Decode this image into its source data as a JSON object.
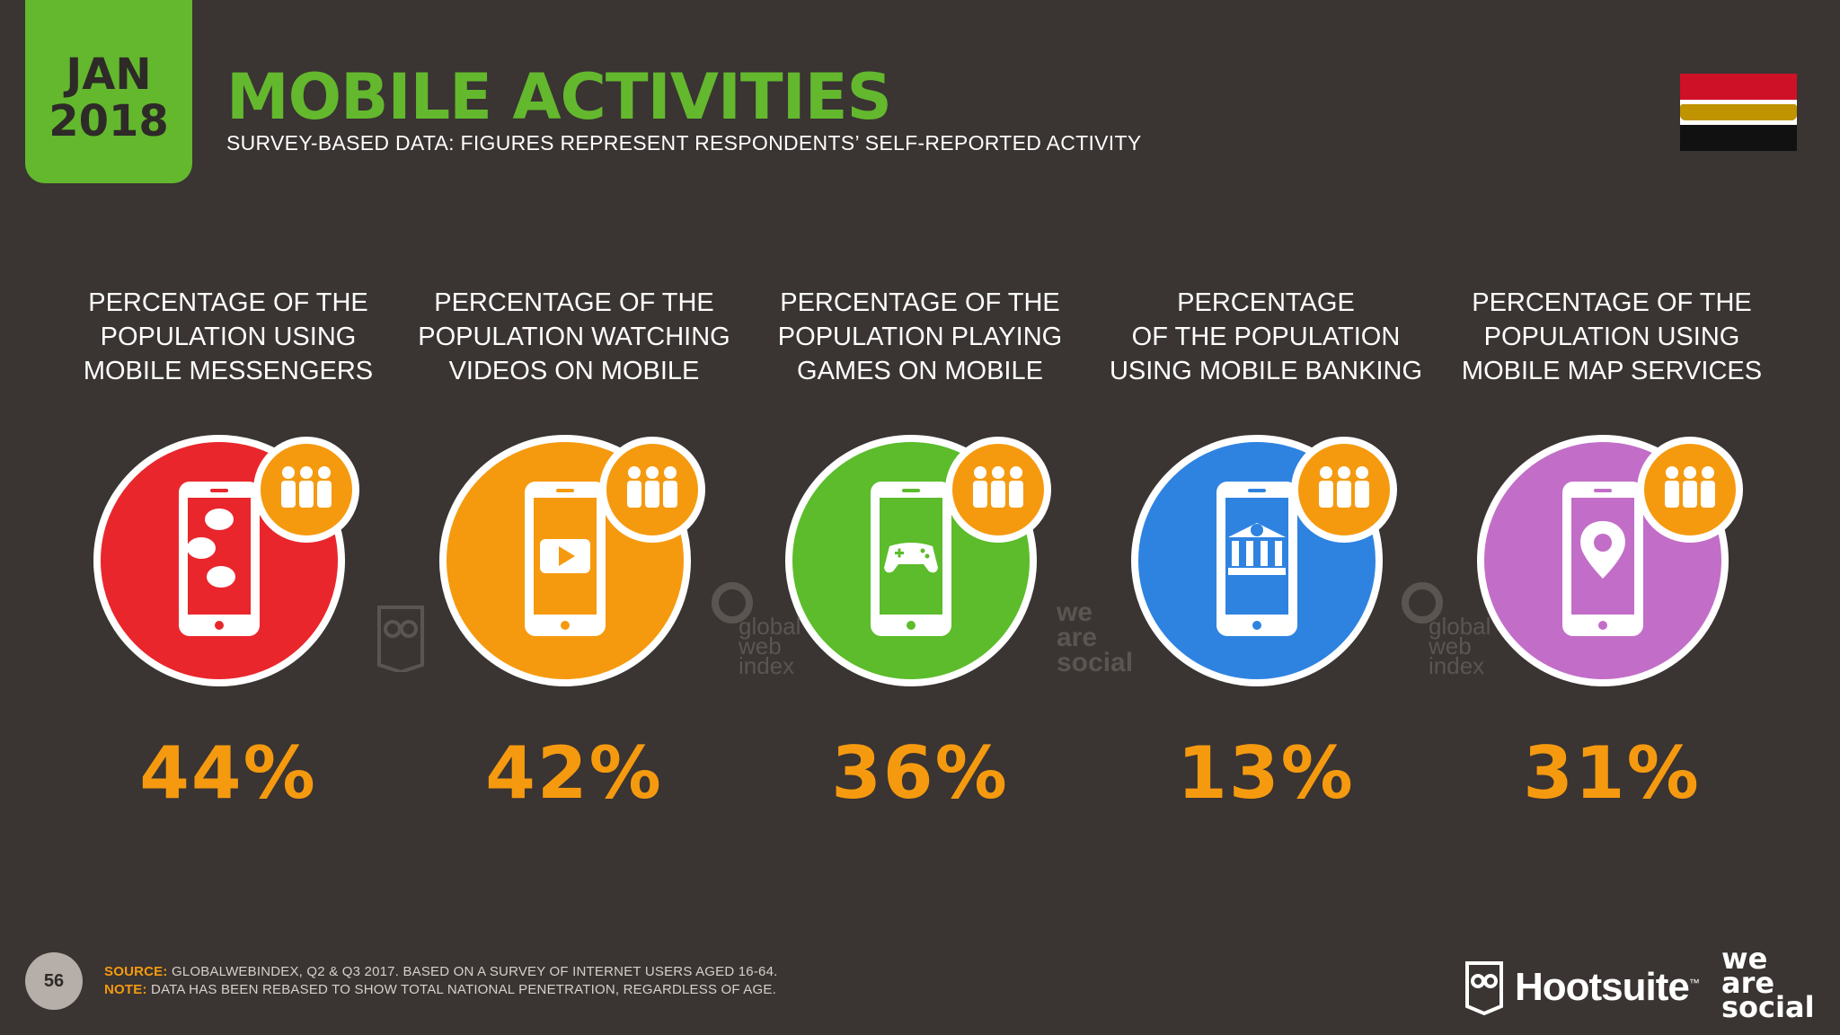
{
  "header": {
    "month": "JAN",
    "year": "2018",
    "title": "MOBILE ACTIVITIES",
    "subtitle": "SURVEY-BASED DATA: FIGURES REPRESENT RESPONDENTS’ SELF-REPORTED ACTIVITY",
    "flag_icon": "egypt-flag-icon"
  },
  "stats": [
    {
      "label": "PERCENTAGE OF THE\nPOPULATION USING\nMOBILE MESSENGERS",
      "value": "44%",
      "color": "#e9262c",
      "icon": "chat-bubbles-icon"
    },
    {
      "label": "PERCENTAGE OF THE\nPOPULATION WATCHING\nVIDEOS ON MOBILE",
      "value": "42%",
      "color": "#f59a0f",
      "icon": "video-play-icon"
    },
    {
      "label": "PERCENTAGE OF THE\nPOPULATION PLAYING\nGAMES ON MOBILE",
      "value": "36%",
      "color": "#5cbc2b",
      "icon": "game-controller-icon"
    },
    {
      "label": "PERCENTAGE\nOF THE POPULATION\nUSING MOBILE BANKING",
      "value": "13%",
      "color": "#2f83e0",
      "icon": "bank-icon"
    },
    {
      "label": "PERCENTAGE OF THE\nPOPULATION USING\nMOBILE MAP SERVICES",
      "value": "31%",
      "color": "#c26ec8",
      "icon": "map-pin-icon"
    }
  ],
  "watermarks": {
    "gwi": "global\nweb\nindex",
    "was": "we\nare\nsocial"
  },
  "footer": {
    "page_number": "56",
    "source_label": "SOURCE:",
    "source_text": "GLOBALWEBINDEX, Q2 & Q3 2017. BASED ON A SURVEY OF INTERNET USERS AGED 16-64.",
    "note_label": "NOTE:",
    "note_text": "DATA HAS BEEN REBASED TO SHOW TOTAL NATIONAL PENETRATION, REGARDLESS OF AGE.",
    "hootsuite": "Hootsuite",
    "tm": "™",
    "we_are_social": "we\nare\nsocial"
  }
}
